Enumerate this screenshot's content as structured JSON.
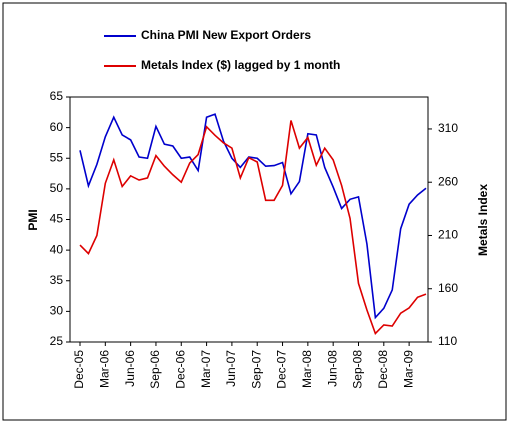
{
  "chart_data": {
    "type": "line",
    "x": [
      "Dec-05",
      null,
      null,
      "Mar-06",
      null,
      null,
      "Jun-06",
      null,
      null,
      "Sep-06",
      null,
      null,
      "Dec-06",
      null,
      null,
      "Mar-07",
      null,
      null,
      "Jun-07",
      null,
      null,
      "Sep-07",
      null,
      null,
      "Dec-07",
      null,
      null,
      "Mar-08",
      null,
      null,
      "Jun-08",
      null,
      null,
      "Sep-08",
      null,
      null,
      "Dec-08",
      null,
      null,
      "Mar-09",
      null,
      null
    ],
    "y_label": "PMI",
    "y2_label": "Metals Index",
    "ylim": [
      25,
      65
    ],
    "yticks": [
      25,
      30,
      35,
      40,
      45,
      50,
      55,
      60,
      65
    ],
    "y2lim": [
      110,
      340
    ],
    "y2ticks": [
      110,
      160,
      210,
      260,
      310
    ],
    "legend": "top",
    "series": [
      {
        "name": "China PMI New Export Orders",
        "color": "#0000cc",
        "values": [
          56.3,
          50.5,
          54,
          58.5,
          61.7,
          58.8,
          58,
          55.2,
          55,
          60.2,
          57.3,
          57,
          55,
          55.2,
          53,
          61.7,
          62.2,
          57.8,
          55,
          53.5,
          55.2,
          55,
          53.7,
          53.8,
          54.3,
          49.2,
          51.2,
          59,
          58.8,
          53.5,
          50.3,
          46.8,
          48.3,
          48.7,
          41,
          29,
          30.5,
          33.5,
          43.5,
          47.5,
          49,
          50.1
        ]
      },
      {
        "name": "Metals Index ($) lagged by 1 month",
        "color": "#dd0000",
        "axis": "y2",
        "values": [
          201,
          193,
          210,
          259,
          281,
          256,
          266,
          262,
          264,
          285,
          275,
          267,
          260,
          278,
          286,
          312,
          304,
          297,
          292,
          264,
          283,
          279,
          243,
          243,
          257,
          318,
          292,
          302,
          276,
          292,
          281,
          257,
          226,
          165,
          140,
          118,
          126,
          125,
          137,
          142,
          152,
          155
        ]
      }
    ]
  }
}
